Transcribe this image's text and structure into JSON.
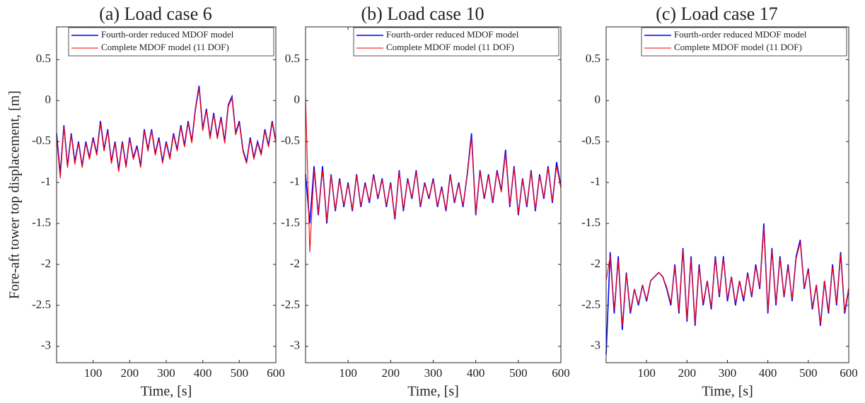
{
  "chart_data": [
    {
      "type": "line",
      "title": "(a) Load case 6",
      "x_label": "Time, [s]",
      "y_label": "Fore-aft tower top displacement, [m]",
      "x": [
        0,
        10,
        20,
        30,
        40,
        50,
        60,
        70,
        80,
        90,
        100,
        110,
        120,
        130,
        140,
        150,
        160,
        170,
        180,
        190,
        200,
        210,
        220,
        230,
        240,
        250,
        260,
        270,
        280,
        290,
        300,
        310,
        320,
        330,
        340,
        350,
        360,
        370,
        380,
        390,
        400,
        410,
        420,
        430,
        440,
        450,
        460,
        470,
        480,
        490,
        500,
        510,
        520,
        530,
        540,
        550,
        560,
        570,
        580,
        590,
        600
      ],
      "series": [
        {
          "name": "Fourth-order reduced MDOF model",
          "color": "#0000ff",
          "values": [
            -0.4,
            -0.9,
            -0.3,
            -0.8,
            -0.4,
            -0.75,
            -0.5,
            -0.8,
            -0.5,
            -0.7,
            -0.45,
            -0.65,
            -0.25,
            -0.6,
            -0.35,
            -0.75,
            -0.5,
            -0.85,
            -0.5,
            -0.8,
            -0.45,
            -0.7,
            -0.55,
            -0.8,
            -0.35,
            -0.6,
            -0.35,
            -0.65,
            -0.45,
            -0.75,
            -0.5,
            -0.7,
            -0.4,
            -0.6,
            -0.3,
            -0.55,
            -0.25,
            -0.5,
            -0.1,
            0.18,
            -0.35,
            -0.1,
            -0.45,
            -0.15,
            -0.45,
            -0.2,
            -0.5,
            -0.05,
            0.05,
            -0.4,
            -0.25,
            -0.6,
            -0.75,
            -0.45,
            -0.7,
            -0.5,
            -0.65,
            -0.35,
            -0.55,
            -0.25,
            -0.5
          ]
        },
        {
          "name": "Complete MDOF model (11 DOF)",
          "color": "#ff0000",
          "values": [
            -0.45,
            -0.95,
            -0.32,
            -0.82,
            -0.42,
            -0.78,
            -0.52,
            -0.82,
            -0.52,
            -0.72,
            -0.47,
            -0.67,
            -0.28,
            -0.62,
            -0.37,
            -0.77,
            -0.52,
            -0.87,
            -0.52,
            -0.82,
            -0.47,
            -0.72,
            -0.57,
            -0.82,
            -0.37,
            -0.62,
            -0.37,
            -0.67,
            -0.47,
            -0.77,
            -0.52,
            -0.72,
            -0.42,
            -0.62,
            -0.32,
            -0.57,
            -0.27,
            -0.52,
            -0.12,
            0.15,
            -0.37,
            -0.12,
            -0.47,
            -0.17,
            -0.47,
            -0.22,
            -0.52,
            -0.07,
            0.03,
            -0.42,
            -0.27,
            -0.62,
            -0.77,
            -0.47,
            -0.72,
            -0.52,
            -0.67,
            -0.37,
            -0.57,
            -0.27,
            -0.52
          ]
        }
      ],
      "xlim": [
        0,
        600
      ],
      "xticks": [
        100,
        200,
        300,
        400,
        500,
        600
      ],
      "ylim": [
        -3.2,
        0.9
      ],
      "yticks": [
        -3,
        -2.5,
        -2,
        -1.5,
        -1,
        -0.5,
        0,
        0.5
      ],
      "legend": "upper right"
    },
    {
      "type": "line",
      "title": "(b) Load case 10",
      "x_label": "Time, [s]",
      "x": [
        0,
        10,
        20,
        30,
        40,
        50,
        60,
        70,
        80,
        90,
        100,
        110,
        120,
        130,
        140,
        150,
        160,
        170,
        180,
        190,
        200,
        210,
        220,
        230,
        240,
        250,
        260,
        270,
        280,
        290,
        300,
        310,
        320,
        330,
        340,
        350,
        360,
        370,
        380,
        390,
        400,
        410,
        420,
        430,
        440,
        450,
        460,
        470,
        480,
        490,
        500,
        510,
        520,
        530,
        540,
        550,
        560,
        570,
        580,
        590,
        600
      ],
      "series": [
        {
          "name": "Fourth-order reduced MDOF model",
          "color": "#0000ff",
          "values": [
            -0.9,
            -1.5,
            -0.8,
            -1.4,
            -0.8,
            -1.5,
            -0.9,
            -1.35,
            -0.95,
            -1.3,
            -1.0,
            -1.35,
            -0.9,
            -1.3,
            -1.0,
            -1.25,
            -0.9,
            -1.2,
            -0.95,
            -1.3,
            -1.0,
            -1.45,
            -0.85,
            -1.35,
            -0.95,
            -1.2,
            -0.85,
            -1.3,
            -1.0,
            -1.2,
            -0.95,
            -1.3,
            -1.05,
            -1.35,
            -0.9,
            -1.25,
            -1.0,
            -1.3,
            -0.9,
            -0.4,
            -1.4,
            -0.85,
            -1.2,
            -0.9,
            -1.25,
            -0.85,
            -1.1,
            -0.6,
            -1.3,
            -0.8,
            -1.4,
            -0.95,
            -1.3,
            -0.85,
            -1.35,
            -0.9,
            -1.2,
            -0.8,
            -1.25,
            -0.75,
            -1.05
          ]
        },
        {
          "name": "Complete MDOF model (11 DOF)",
          "color": "#ff0000",
          "values": [
            0.05,
            -1.85,
            -0.85,
            -1.38,
            -0.85,
            -1.47,
            -0.92,
            -1.33,
            -0.97,
            -1.28,
            -1.02,
            -1.33,
            -0.92,
            -1.28,
            -1.02,
            -1.23,
            -0.92,
            -1.18,
            -0.97,
            -1.28,
            -1.02,
            -1.43,
            -0.87,
            -1.33,
            -0.97,
            -1.18,
            -0.87,
            -1.28,
            -1.02,
            -1.18,
            -0.97,
            -1.28,
            -1.07,
            -1.33,
            -0.92,
            -1.23,
            -1.02,
            -1.28,
            -0.92,
            -0.45,
            -1.38,
            -0.87,
            -1.18,
            -0.92,
            -1.23,
            -0.87,
            -1.12,
            -0.65,
            -1.28,
            -0.82,
            -1.38,
            -0.97,
            -1.28,
            -0.87,
            -1.33,
            -0.92,
            -1.18,
            -0.82,
            -1.23,
            -0.8,
            -1.07
          ]
        }
      ],
      "xlim": [
        0,
        600
      ],
      "xticks": [
        100,
        200,
        300,
        400,
        500,
        600
      ],
      "ylim": [
        -3.2,
        0.9
      ],
      "yticks": [
        -3,
        -2.5,
        -2,
        -1.5,
        -1,
        -0.5,
        0,
        0.5
      ],
      "legend": "upper right"
    },
    {
      "type": "line",
      "title": "(c) Load case 17",
      "x_label": "Time, [s]",
      "x": [
        0,
        10,
        20,
        30,
        40,
        50,
        60,
        70,
        80,
        90,
        100,
        110,
        120,
        130,
        140,
        150,
        160,
        170,
        180,
        190,
        200,
        210,
        220,
        230,
        240,
        250,
        260,
        270,
        280,
        290,
        300,
        310,
        320,
        330,
        340,
        350,
        360,
        370,
        380,
        390,
        400,
        410,
        420,
        430,
        440,
        450,
        460,
        470,
        480,
        490,
        500,
        510,
        520,
        530,
        540,
        550,
        560,
        570,
        580,
        590,
        600
      ],
      "series": [
        {
          "name": "Fourth-order reduced MDOF model",
          "color": "#0000ff",
          "values": [
            -3.1,
            -1.85,
            -2.6,
            -1.9,
            -2.8,
            -2.1,
            -2.6,
            -2.3,
            -2.5,
            -2.25,
            -2.45,
            -2.2,
            -2.15,
            -2.1,
            -2.15,
            -2.3,
            -2.5,
            -2.0,
            -2.6,
            -1.8,
            -2.7,
            -1.9,
            -2.75,
            -2.0,
            -2.5,
            -2.2,
            -2.55,
            -1.9,
            -2.4,
            -1.9,
            -2.45,
            -2.15,
            -2.5,
            -2.2,
            -2.45,
            -2.1,
            -2.4,
            -2.0,
            -2.3,
            -1.5,
            -2.6,
            -1.8,
            -2.5,
            -1.9,
            -2.4,
            -2.0,
            -2.45,
            -1.9,
            -1.7,
            -2.3,
            -2.05,
            -2.55,
            -2.25,
            -2.75,
            -2.2,
            -2.6,
            -2.0,
            -2.5,
            -1.85,
            -2.6,
            -2.3
          ]
        },
        {
          "name": "Complete MDOF model (11 DOF)",
          "color": "#ff0000",
          "values": [
            -2.2,
            -1.9,
            -2.55,
            -1.95,
            -2.75,
            -2.12,
            -2.57,
            -2.3,
            -2.48,
            -2.25,
            -2.43,
            -2.2,
            -2.15,
            -2.1,
            -2.15,
            -2.28,
            -2.47,
            -2.03,
            -2.57,
            -1.83,
            -2.67,
            -1.93,
            -2.72,
            -2.03,
            -2.47,
            -2.2,
            -2.52,
            -1.93,
            -2.38,
            -1.93,
            -2.42,
            -2.15,
            -2.47,
            -2.2,
            -2.42,
            -2.12,
            -2.38,
            -2.03,
            -2.28,
            -1.55,
            -2.57,
            -1.83,
            -2.47,
            -1.93,
            -2.38,
            -2.03,
            -2.42,
            -1.93,
            -1.73,
            -2.28,
            -2.07,
            -2.52,
            -2.25,
            -2.72,
            -2.2,
            -2.57,
            -2.03,
            -2.47,
            -1.88,
            -2.57,
            -2.28
          ]
        }
      ],
      "xlim": [
        0,
        600
      ],
      "xticks": [
        100,
        200,
        300,
        400,
        500,
        600
      ],
      "ylim": [
        -3.2,
        0.9
      ],
      "yticks": [
        -3,
        -2.5,
        -2,
        -1.5,
        -1,
        -0.5,
        0,
        0.5
      ],
      "legend": "upper right"
    }
  ]
}
